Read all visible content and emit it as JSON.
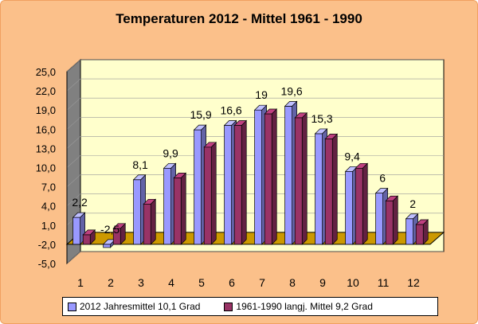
{
  "chart_data": {
    "type": "bar",
    "title": "Temperaturen 2012 - Mittel 1961 - 1990",
    "categories": [
      "1",
      "2",
      "3",
      "4",
      "5",
      "6",
      "7",
      "8",
      "9",
      "10",
      "11",
      "12"
    ],
    "series": [
      {
        "name": "2012 Jahresmittel 10,1 Grad",
        "color": "#9999ff",
        "values": [
          2.2,
          -2.5,
          8.1,
          9.9,
          15.9,
          16.6,
          19,
          19.6,
          15.3,
          9.4,
          6,
          2
        ],
        "labels": [
          "2,2",
          "-2,5",
          "8,1",
          "9,9",
          "15,9",
          "16,6",
          "19",
          "19,6",
          "15,3",
          "9,4",
          "6",
          "2"
        ]
      },
      {
        "name": "1961-1990 langj. Mittel 9,2 Grad",
        "color": "#993366",
        "values": [
          -0.5,
          0.5,
          4.3,
          8.4,
          13.2,
          16.6,
          18.4,
          17.8,
          14.5,
          9.9,
          4.8,
          1.1
        ]
      }
    ],
    "ylim": [
      -5,
      25
    ],
    "yticks": [
      "-5,0",
      "-2,0",
      "1,0",
      "4,0",
      "7,0",
      "10,0",
      "13,0",
      "16,0",
      "19,0",
      "22,0",
      "25,0"
    ],
    "ytick_values": [
      -5,
      -2,
      1,
      4,
      7,
      10,
      13,
      16,
      19,
      22,
      25
    ],
    "floor_color": "#cc9900",
    "wall_color": "#ffffcc",
    "legend_position": "bottom"
  }
}
